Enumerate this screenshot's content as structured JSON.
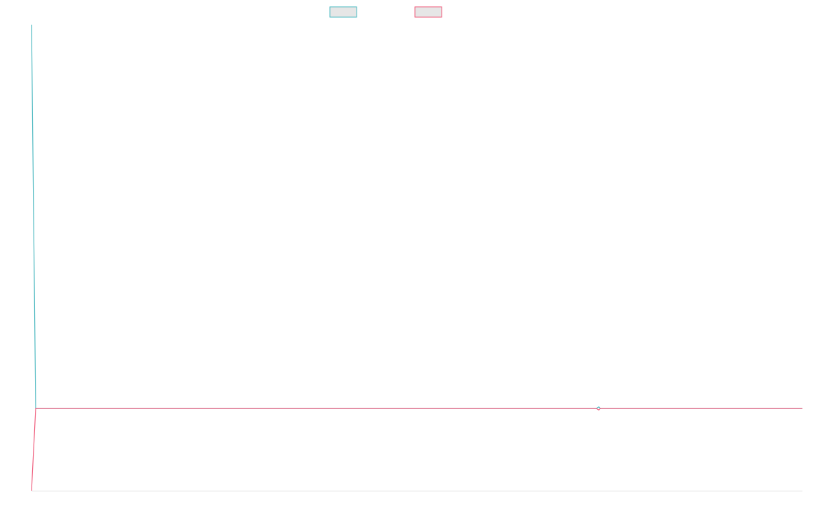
{
  "chart_data": {
    "type": "line",
    "x": [
      0,
      1,
      137,
      137.6,
      138,
      187
    ],
    "xlim": [
      0,
      187
    ],
    "ylim": [
      -0.2143,
      1
    ],
    "series": [
      {
        "color": "#4bb8c0",
        "values": [
          1,
          0,
          0,
          0.004,
          0,
          0
        ]
      },
      {
        "color": "#ef5a7a",
        "values": [
          -0.2143,
          0,
          0,
          -0.004,
          0,
          0
        ]
      }
    ]
  }
}
